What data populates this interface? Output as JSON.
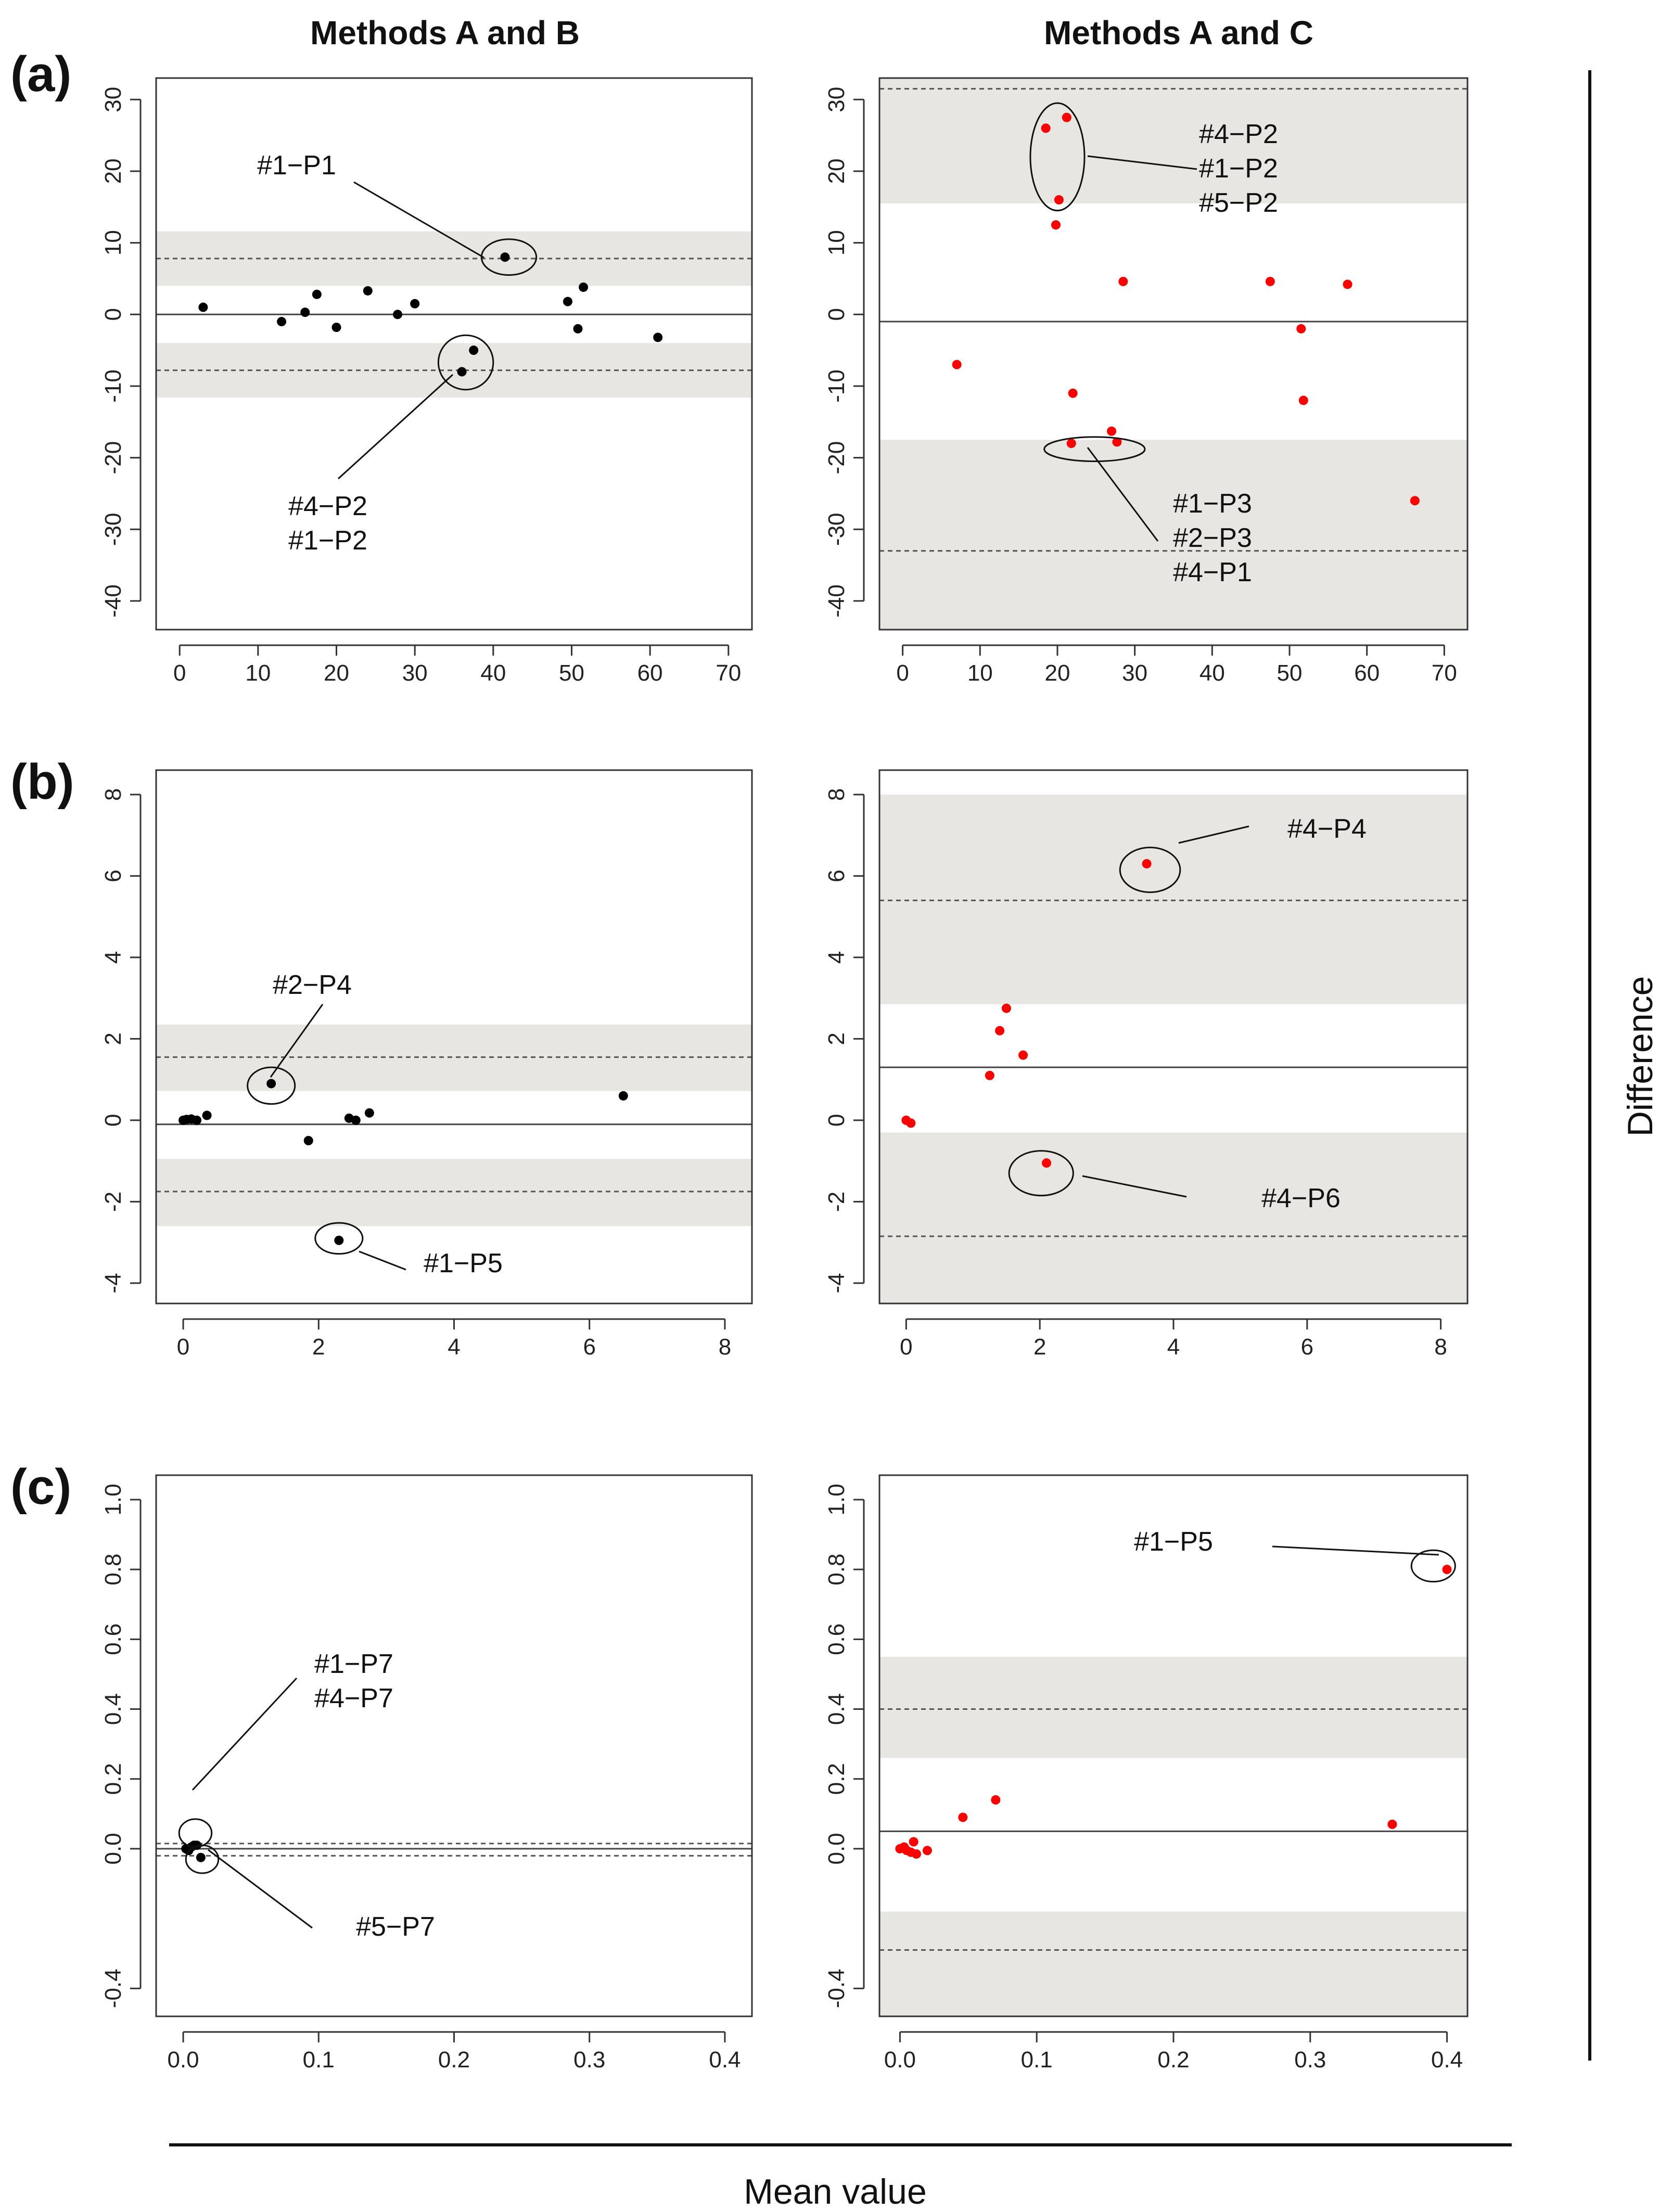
{
  "figure": {
    "column_titles": [
      "Methods A and B",
      "Methods A and C"
    ],
    "row_labels": [
      "(a)",
      "(b)",
      "(c)"
    ],
    "x_axis_title": "Mean value",
    "y_axis_title": "Difference",
    "colors": {
      "series_ab": "#000000",
      "series_ac": "#ff0000",
      "band": "#e8e6e3",
      "frame": "#333333"
    }
  },
  "chart_data": [
    {
      "id": "a-ab",
      "type": "scatter",
      "row": "(a)",
      "column": "Methods A and B",
      "xlim": [
        -3,
        73
      ],
      "ylim": [
        -44,
        33
      ],
      "xticks": [
        0,
        10,
        20,
        30,
        40,
        50,
        60,
        70
      ],
      "yticks": [
        -40,
        -30,
        -20,
        -10,
        0,
        10,
        20,
        30
      ],
      "bias": 0,
      "loa": [
        -7.8,
        7.8
      ],
      "bands": [
        [
          4.0,
          11.6
        ],
        [
          -11.6,
          -4.0
        ]
      ],
      "point_color": "#000000",
      "points": [
        [
          3,
          1
        ],
        [
          13,
          -1
        ],
        [
          16,
          0.3
        ],
        [
          17.5,
          2.8
        ],
        [
          20,
          -1.8
        ],
        [
          24,
          3.3
        ],
        [
          27.8,
          0
        ],
        [
          30,
          1.5
        ],
        [
          36,
          -8
        ],
        [
          37.5,
          -5
        ],
        [
          41.5,
          8
        ],
        [
          49.5,
          1.8
        ],
        [
          50.8,
          -2
        ],
        [
          51.5,
          3.8
        ],
        [
          61,
          -3.2
        ]
      ],
      "annotations": [
        {
          "lines": [
            "#1−P1"
          ],
          "ellipse": {
            "cx": 42,
            "cy": 8,
            "rx": 3.5,
            "ry": 2.5
          }
        },
        {
          "lines": [
            "#4−P2",
            "#1−P2"
          ],
          "ellipse": {
            "cx": 36.5,
            "cy": -6.7,
            "rx": 3.5,
            "ry": 3.8
          }
        }
      ]
    },
    {
      "id": "a-ac",
      "type": "scatter",
      "row": "(a)",
      "column": "Methods A and C",
      "xlim": [
        -3,
        73
      ],
      "ylim": [
        -44,
        33
      ],
      "xticks": [
        0,
        10,
        20,
        30,
        40,
        50,
        60,
        70
      ],
      "yticks": [
        -40,
        -30,
        -20,
        -10,
        0,
        10,
        20,
        30
      ],
      "bias": -1,
      "loa": [
        -33,
        31.5
      ],
      "bands": [
        [
          15.5,
          33
        ],
        [
          -17.5,
          -44
        ]
      ],
      "point_color": "#ff0000",
      "points": [
        [
          7,
          -7
        ],
        [
          18.5,
          26
        ],
        [
          19.8,
          12.5
        ],
        [
          20.2,
          16
        ],
        [
          21.2,
          27.5
        ],
        [
          21.8,
          -18
        ],
        [
          22,
          -11
        ],
        [
          27,
          -16.3
        ],
        [
          27.7,
          -17.8
        ],
        [
          28.5,
          4.6
        ],
        [
          47.5,
          4.6
        ],
        [
          51.5,
          -2
        ],
        [
          51.8,
          -12
        ],
        [
          57.5,
          4.2
        ],
        [
          66.2,
          -26
        ]
      ],
      "annotations": [
        {
          "lines": [
            "#4−P2",
            "#1−P2",
            "#5−P2"
          ],
          "ellipse": {
            "cx": 20,
            "cy": 22,
            "rx": 3.5,
            "ry": 7.5
          }
        },
        {
          "lines": [
            "#1−P3",
            "#2−P3",
            "#4−P1"
          ],
          "ellipse": {
            "cx": 24.8,
            "cy": -18.8,
            "rx": 6.5,
            "ry": 1.7
          }
        }
      ]
    },
    {
      "id": "b-ab",
      "type": "scatter",
      "row": "(b)",
      "column": "Methods A and B",
      "xlim": [
        -0.4,
        8.4
      ],
      "ylim": [
        -4.5,
        8.6
      ],
      "xticks": [
        0,
        2,
        4,
        6,
        8
      ],
      "yticks": [
        -4,
        -2,
        0,
        2,
        4,
        6,
        8
      ],
      "bias": -0.1,
      "loa": [
        -1.75,
        1.55
      ],
      "bands": [
        [
          0.72,
          2.35
        ],
        [
          -0.95,
          -2.6
        ]
      ],
      "point_color": "#000000",
      "points": [
        [
          0,
          0
        ],
        [
          0.05,
          0.02
        ],
        [
          0.12,
          0.03
        ],
        [
          0.2,
          0
        ],
        [
          0.35,
          0.12
        ],
        [
          1.3,
          0.9
        ],
        [
          1.85,
          -0.5
        ],
        [
          2.3,
          -2.95
        ],
        [
          2.45,
          0.05
        ],
        [
          2.55,
          0
        ],
        [
          2.75,
          0.18
        ],
        [
          6.5,
          0.6
        ]
      ],
      "annotations": [
        {
          "lines": [
            "#2−P4"
          ],
          "ellipse": {
            "cx": 1.3,
            "cy": 0.85,
            "rx": 0.35,
            "ry": 0.45
          }
        },
        {
          "lines": [
            "#1−P5"
          ],
          "ellipse": {
            "cx": 2.3,
            "cy": -2.9,
            "rx": 0.35,
            "ry": 0.38
          }
        }
      ]
    },
    {
      "id": "b-ac",
      "type": "scatter",
      "row": "(b)",
      "column": "Methods A and C",
      "xlim": [
        -0.4,
        8.4
      ],
      "ylim": [
        -4.5,
        8.6
      ],
      "xticks": [
        0,
        2,
        4,
        6,
        8
      ],
      "yticks": [
        -4,
        -2,
        0,
        2,
        4,
        6,
        8
      ],
      "bias": 1.3,
      "loa": [
        -2.85,
        5.4
      ],
      "bands": [
        [
          2.85,
          8.0
        ],
        [
          -0.3,
          -4.5
        ]
      ],
      "point_color": "#ff0000",
      "points": [
        [
          0,
          0
        ],
        [
          0.07,
          -0.07
        ],
        [
          1.25,
          1.1
        ],
        [
          1.4,
          2.2
        ],
        [
          1.5,
          2.75
        ],
        [
          1.75,
          1.6
        ],
        [
          2.1,
          -1.05
        ],
        [
          3.6,
          6.3
        ]
      ],
      "annotations": [
        {
          "lines": [
            "#4−P4"
          ],
          "ellipse": {
            "cx": 3.65,
            "cy": 6.15,
            "rx": 0.45,
            "ry": 0.55
          }
        },
        {
          "lines": [
            "#4−P6"
          ],
          "ellipse": {
            "cx": 2.02,
            "cy": -1.3,
            "rx": 0.48,
            "ry": 0.55
          }
        }
      ]
    },
    {
      "id": "c-ab",
      "type": "scatter",
      "row": "(c)",
      "column": "Methods A and B",
      "xlim": [
        -0.02,
        0.42
      ],
      "ylim": [
        -0.48,
        1.07
      ],
      "xticks": [
        0.0,
        0.1,
        0.2,
        0.3,
        0.4
      ],
      "yticks": [
        -0.4,
        0.0,
        0.2,
        0.4,
        0.6,
        0.8,
        1.0
      ],
      "tick_format": "1",
      "bias": 0.0,
      "loa": [
        -0.02,
        0.015
      ],
      "bands": [],
      "point_color": "#000000",
      "points": [
        [
          0.002,
          0.0
        ],
        [
          0.004,
          -0.005
        ],
        [
          0.006,
          0.005
        ],
        [
          0.008,
          0.01
        ],
        [
          0.01,
          0.01
        ],
        [
          0.013,
          -0.025
        ]
      ],
      "annotations": [
        {
          "lines": [
            "#1−P7",
            "#4−P7"
          ],
          "ellipse": {
            "cx": 0.009,
            "cy": 0.045,
            "rx": 0.012,
            "ry": 0.04
          }
        },
        {
          "lines": [
            "#5−P7"
          ],
          "ellipse": {
            "cx": 0.014,
            "cy": -0.03,
            "rx": 0.012,
            "ry": 0.04
          }
        }
      ]
    },
    {
      "id": "c-ac",
      "type": "scatter",
      "row": "(c)",
      "column": "Methods A and C",
      "xlim": [
        -0.015,
        0.415
      ],
      "ylim": [
        -0.48,
        1.07
      ],
      "xticks": [
        0.0,
        0.1,
        0.2,
        0.3,
        0.4
      ],
      "yticks": [
        -0.4,
        0.0,
        0.2,
        0.4,
        0.6,
        0.8,
        1.0
      ],
      "tick_format": "1",
      "bias": 0.05,
      "loa": [
        -0.29,
        0.4
      ],
      "bands": [
        [
          0.26,
          0.55
        ],
        [
          -0.18,
          -0.48
        ]
      ],
      "point_color": "#ff0000",
      "points": [
        [
          0,
          0
        ],
        [
          0.003,
          0.005
        ],
        [
          0.005,
          -0.005
        ],
        [
          0.008,
          -0.01
        ],
        [
          0.01,
          0.02
        ],
        [
          0.012,
          -0.015
        ],
        [
          0.02,
          -0.005
        ],
        [
          0.046,
          0.09
        ],
        [
          0.07,
          0.14
        ],
        [
          0.36,
          0.07
        ],
        [
          0.4,
          0.8
        ]
      ],
      "annotations": [
        {
          "lines": [
            "#1−P5"
          ],
          "ellipse": {
            "cx": 0.39,
            "cy": 0.81,
            "rx": 0.016,
            "ry": 0.045
          }
        }
      ]
    }
  ]
}
